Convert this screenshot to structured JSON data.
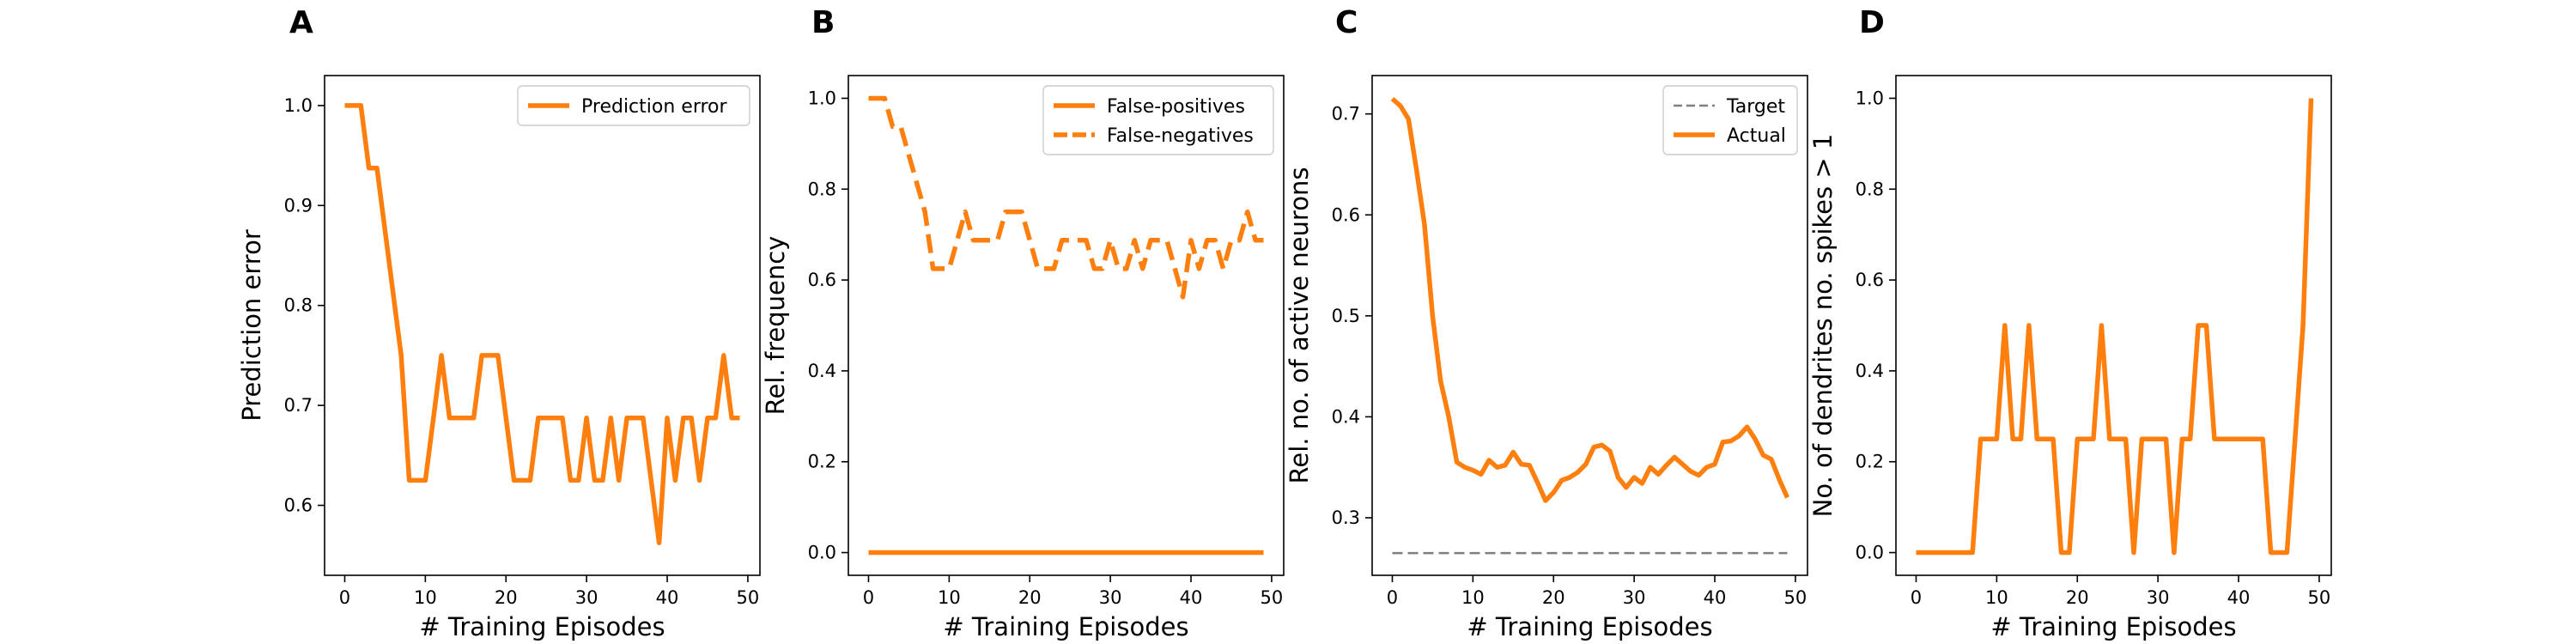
{
  "colors": {
    "series": "#ff7f0e",
    "target": "#7f7f7f",
    "axes": "#000000"
  },
  "chart_data": [
    {
      "panel": "A",
      "type": "line",
      "xlabel": "# Training Episodes",
      "ylabel": "Prediction error",
      "xlim": [
        -2.5,
        51.5
      ],
      "ylim": [
        0.53,
        1.03
      ],
      "xticks": [
        0,
        10,
        20,
        30,
        40,
        50
      ],
      "yticks": [
        0.6,
        0.7,
        0.8,
        0.9,
        1.0
      ],
      "ytick_labels": [
        "0.6",
        "0.7",
        "0.8",
        "0.9",
        "1.0"
      ],
      "legend": "top-right",
      "series": [
        {
          "name": "Prediction error",
          "style": "solid",
          "color": "#ff7f0e",
          "x": [
            0,
            1,
            2,
            3,
            4,
            5,
            6,
            7,
            8,
            9,
            10,
            11,
            12,
            13,
            14,
            15,
            16,
            17,
            18,
            19,
            20,
            21,
            22,
            23,
            24,
            25,
            26,
            27,
            28,
            29,
            30,
            31,
            32,
            33,
            34,
            35,
            36,
            37,
            38,
            39,
            40,
            41,
            42,
            43,
            44,
            45,
            46,
            47,
            48,
            49
          ],
          "values": [
            1.0,
            1.0,
            1.0,
            0.9375,
            0.9375,
            0.875,
            0.8125,
            0.75,
            0.625,
            0.625,
            0.625,
            0.6875,
            0.75,
            0.6875,
            0.6875,
            0.6875,
            0.6875,
            0.75,
            0.75,
            0.75,
            0.6875,
            0.625,
            0.625,
            0.625,
            0.6875,
            0.6875,
            0.6875,
            0.6875,
            0.625,
            0.625,
            0.6875,
            0.625,
            0.625,
            0.6875,
            0.625,
            0.6875,
            0.6875,
            0.6875,
            0.625,
            0.5625,
            0.6875,
            0.625,
            0.6875,
            0.6875,
            0.625,
            0.6875,
            0.6875,
            0.75,
            0.6875,
            0.6875
          ]
        }
      ]
    },
    {
      "panel": "B",
      "type": "line",
      "xlabel": "# Training Episodes",
      "ylabel": "Rel. frequency",
      "xlim": [
        -2.5,
        51.5
      ],
      "ylim": [
        -0.05,
        1.05
      ],
      "xticks": [
        0,
        10,
        20,
        30,
        40,
        50
      ],
      "yticks": [
        0.0,
        0.2,
        0.4,
        0.6,
        0.8,
        1.0
      ],
      "ytick_labels": [
        "0.0",
        "0.2",
        "0.4",
        "0.6",
        "0.8",
        "1.0"
      ],
      "legend": "top-right",
      "series": [
        {
          "name": "False-positives",
          "style": "solid",
          "color": "#ff7f0e",
          "x": [
            0,
            49
          ],
          "values": [
            0.0,
            0.0
          ]
        },
        {
          "name": "False-negatives",
          "style": "dashed",
          "color": "#ff7f0e",
          "x": [
            0,
            1,
            2,
            3,
            4,
            5,
            6,
            7,
            8,
            9,
            10,
            11,
            12,
            13,
            14,
            15,
            16,
            17,
            18,
            19,
            20,
            21,
            22,
            23,
            24,
            25,
            26,
            27,
            28,
            29,
            30,
            31,
            32,
            33,
            34,
            35,
            36,
            37,
            38,
            39,
            40,
            41,
            42,
            43,
            44,
            45,
            46,
            47,
            48,
            49
          ],
          "values": [
            1.0,
            1.0,
            1.0,
            0.9375,
            0.9375,
            0.875,
            0.8125,
            0.75,
            0.625,
            0.625,
            0.625,
            0.6875,
            0.75,
            0.6875,
            0.6875,
            0.6875,
            0.6875,
            0.75,
            0.75,
            0.75,
            0.6875,
            0.625,
            0.625,
            0.625,
            0.6875,
            0.6875,
            0.6875,
            0.6875,
            0.625,
            0.625,
            0.6875,
            0.625,
            0.625,
            0.6875,
            0.625,
            0.6875,
            0.6875,
            0.6875,
            0.625,
            0.5625,
            0.6875,
            0.625,
            0.6875,
            0.6875,
            0.625,
            0.6875,
            0.6875,
            0.75,
            0.6875,
            0.6875
          ]
        }
      ]
    },
    {
      "panel": "C",
      "type": "line",
      "xlabel": "# Training Episodes",
      "ylabel": "Rel. no. of active neurons",
      "xlim": [
        -2.5,
        51.5
      ],
      "ylim": [
        0.243,
        0.738
      ],
      "xticks": [
        0,
        10,
        20,
        30,
        40,
        50
      ],
      "yticks": [
        0.3,
        0.4,
        0.5,
        0.6,
        0.7
      ],
      "ytick_labels": [
        "0.3",
        "0.4",
        "0.5",
        "0.6",
        "0.7"
      ],
      "legend": "top-right",
      "series": [
        {
          "name": "Target",
          "style": "dashed-thin",
          "color": "#7f7f7f",
          "x": [
            0,
            49
          ],
          "values": [
            0.265,
            0.265
          ]
        },
        {
          "name": "Actual",
          "style": "solid",
          "color": "#ff7f0e",
          "x": [
            0,
            1,
            2,
            3,
            4,
            5,
            6,
            7,
            8,
            9,
            10,
            11,
            12,
            13,
            14,
            15,
            16,
            17,
            18,
            19,
            20,
            21,
            22,
            23,
            24,
            25,
            26,
            27,
            28,
            29,
            30,
            31,
            32,
            33,
            34,
            35,
            36,
            37,
            38,
            39,
            40,
            41,
            42,
            43,
            44,
            45,
            46,
            47,
            48,
            49
          ],
          "values": [
            0.715,
            0.708,
            0.695,
            0.645,
            0.59,
            0.5,
            0.435,
            0.4,
            0.355,
            0.35,
            0.347,
            0.343,
            0.357,
            0.35,
            0.352,
            0.365,
            0.353,
            0.352,
            0.335,
            0.317,
            0.325,
            0.337,
            0.34,
            0.345,
            0.353,
            0.37,
            0.372,
            0.366,
            0.34,
            0.33,
            0.34,
            0.334,
            0.35,
            0.343,
            0.352,
            0.36,
            0.353,
            0.346,
            0.342,
            0.35,
            0.353,
            0.375,
            0.376,
            0.381,
            0.39,
            0.378,
            0.362,
            0.358,
            0.338,
            0.32
          ]
        }
      ]
    },
    {
      "panel": "D",
      "type": "line",
      "xlabel": "# Training Episodes",
      "ylabel": "No. of dendrites no. spikes > 1",
      "xlim": [
        -2.5,
        51.5
      ],
      "ylim": [
        -0.05,
        1.05
      ],
      "xticks": [
        0,
        10,
        20,
        30,
        40,
        50
      ],
      "yticks": [
        0.0,
        0.2,
        0.4,
        0.6,
        0.8,
        1.0
      ],
      "ytick_labels": [
        "0.0",
        "0.2",
        "0.4",
        "0.6",
        "0.8",
        "1.0"
      ],
      "legend": "none",
      "series": [
        {
          "name": "",
          "style": "solid",
          "color": "#ff7f0e",
          "x": [
            0,
            1,
            2,
            3,
            4,
            5,
            6,
            7,
            8,
            9,
            10,
            11,
            12,
            13,
            14,
            15,
            16,
            17,
            18,
            19,
            20,
            21,
            22,
            23,
            24,
            25,
            26,
            27,
            28,
            29,
            30,
            31,
            32,
            33,
            34,
            35,
            36,
            37,
            38,
            39,
            40,
            41,
            42,
            43,
            44,
            45,
            46,
            47,
            48,
            49
          ],
          "values": [
            0,
            0,
            0,
            0,
            0,
            0,
            0,
            0,
            0.25,
            0.25,
            0.25,
            0.5,
            0.25,
            0.25,
            0.5,
            0.25,
            0.25,
            0.25,
            0,
            0,
            0.25,
            0.25,
            0.25,
            0.5,
            0.25,
            0.25,
            0.25,
            0,
            0.25,
            0.25,
            0.25,
            0.25,
            0,
            0.25,
            0.25,
            0.5,
            0.5,
            0.25,
            0.25,
            0.25,
            0.25,
            0.25,
            0.25,
            0.25,
            0,
            0,
            0,
            0.25,
            0.5,
            1.0
          ]
        }
      ]
    }
  ]
}
